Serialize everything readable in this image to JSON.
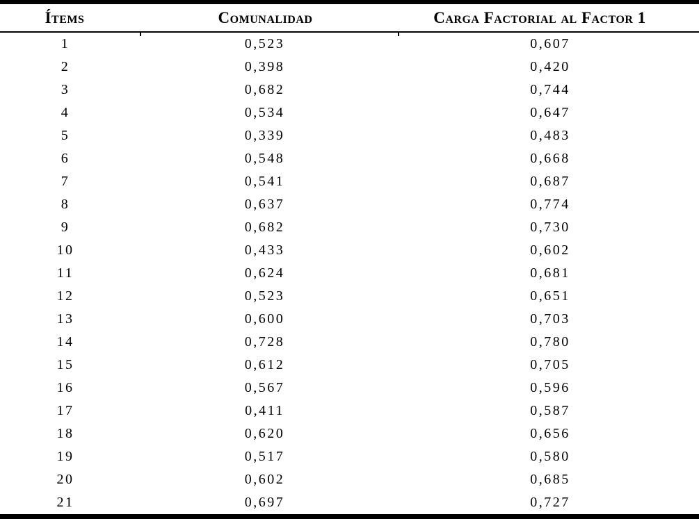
{
  "chart_data": {
    "type": "table",
    "title": "",
    "columns": [
      "Ítems",
      "Comunalidad",
      "Carga Factorial al Factor 1"
    ],
    "rows": [
      [
        "1",
        "0,523",
        "0,607"
      ],
      [
        "2",
        "0,398",
        "0,420"
      ],
      [
        "3",
        "0,682",
        "0,744"
      ],
      [
        "4",
        "0,534",
        "0,647"
      ],
      [
        "5",
        "0,339",
        "0,483"
      ],
      [
        "6",
        "0,548",
        "0,668"
      ],
      [
        "7",
        "0,541",
        "0,687"
      ],
      [
        "8",
        "0,637",
        "0,774"
      ],
      [
        "9",
        "0,682",
        "0,730"
      ],
      [
        "10",
        "0,433",
        "0,602"
      ],
      [
        "11",
        "0,624",
        "0,681"
      ],
      [
        "12",
        "0,523",
        "0,651"
      ],
      [
        "13",
        "0,600",
        "0,703"
      ],
      [
        "14",
        "0,728",
        "0,780"
      ],
      [
        "15",
        "0,612",
        "0,705"
      ],
      [
        "16",
        "0,567",
        "0,596"
      ],
      [
        "17",
        "0,411",
        "0,587"
      ],
      [
        "18",
        "0,620",
        "0,656"
      ],
      [
        "19",
        "0,517",
        "0,580"
      ],
      [
        "20",
        "0,602",
        "0,685"
      ],
      [
        "21",
        "0,697",
        "0,727"
      ]
    ]
  },
  "style": {
    "text_color": "#000000",
    "background_color": "#ffffff",
    "rule_color": "#000000"
  }
}
